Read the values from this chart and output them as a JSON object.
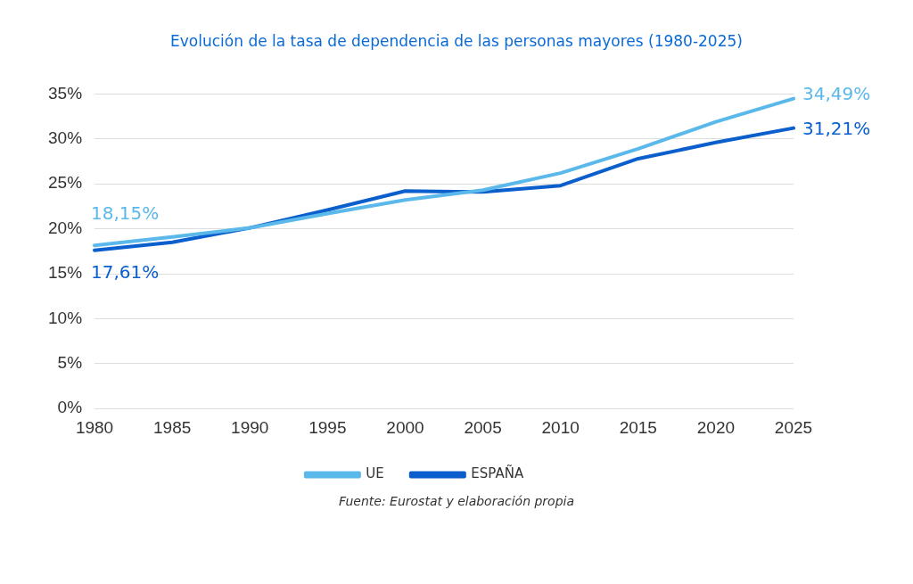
{
  "chart_data": {
    "type": "line",
    "title": "Evolución de la tasa de dependencia de las personas mayores (1980-2025)",
    "categories": [
      "1980",
      "1985",
      "1990",
      "1995",
      "2000",
      "2005",
      "2010",
      "2015",
      "2020",
      "2025"
    ],
    "series": [
      {
        "name": "UE",
        "color": "#5ab8ea",
        "values": [
          18.15,
          19.1,
          20.1,
          21.7,
          23.2,
          24.3,
          26.2,
          28.9,
          31.9,
          34.49
        ],
        "value_labels": [
          "18,15%",
          null,
          null,
          null,
          null,
          null,
          null,
          null,
          null,
          "34,49%"
        ]
      },
      {
        "name": "ESPAÑA",
        "color": "#0a5fcc",
        "values": [
          17.61,
          18.5,
          20.1,
          22.1,
          24.2,
          24.1,
          24.8,
          27.8,
          29.6,
          31.21
        ],
        "value_labels": [
          "17,61%",
          null,
          null,
          null,
          null,
          null,
          null,
          null,
          null,
          "31,21%"
        ]
      }
    ],
    "ylim": [
      0,
      35
    ],
    "yticks": [
      {
        "value": 0,
        "label": "0%"
      },
      {
        "value": 5,
        "label": "5%"
      },
      {
        "value": 10,
        "label": "10%"
      },
      {
        "value": 15,
        "label": "15%"
      },
      {
        "value": 20,
        "label": "20%"
      },
      {
        "value": 25,
        "label": "25%"
      },
      {
        "value": 30,
        "label": "30%"
      },
      {
        "value": 35,
        "label": "35%"
      }
    ],
    "grid": "y",
    "legend": "bottom",
    "marker": "none",
    "line_style": "solid",
    "annotations": [
      "Fuente: Eurostat y elaboración propia"
    ]
  }
}
